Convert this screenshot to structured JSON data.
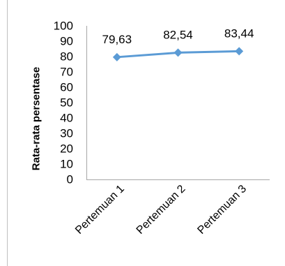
{
  "chart_data": {
    "type": "line",
    "title": "",
    "xlabel": "",
    "ylabel": "Rata-rata  persentase",
    "categories": [
      "Pertemuan 1",
      "Pertemuan 2",
      "Pertemuan 3"
    ],
    "series": [
      {
        "values": [
          79.63,
          82.54,
          83.44
        ],
        "data_labels": [
          "79,63",
          "82,54",
          "83,44"
        ]
      }
    ],
    "ylim": [
      0,
      100
    ],
    "yticks": [
      "0",
      "10",
      "20",
      "30",
      "40",
      "50",
      "60",
      "70",
      "80",
      "90",
      "100"
    ],
    "grid": false,
    "legend": "none",
    "line_color": "#5B9BD5",
    "marker": "diamond"
  }
}
